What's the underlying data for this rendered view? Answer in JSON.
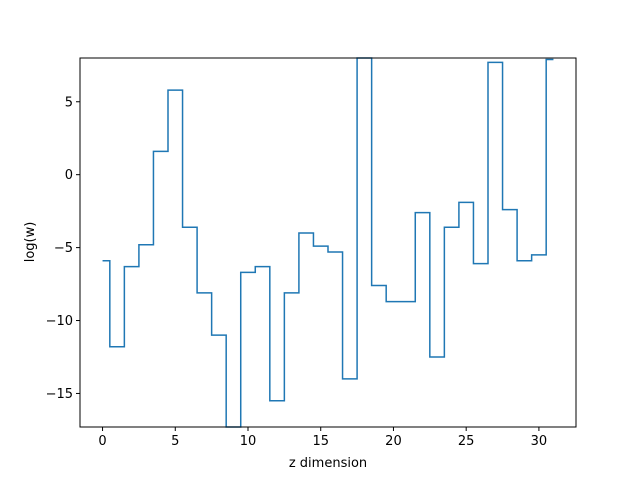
{
  "chart_data": {
    "type": "line",
    "drawstyle": "steps-mid",
    "title": "",
    "xlabel": "z dimension",
    "ylabel": "log(w)",
    "xlim": [
      -1.55,
      32.55
    ],
    "ylim": [
      -17.3,
      8.0
    ],
    "xticks": [
      0,
      5,
      10,
      15,
      20,
      25,
      30
    ],
    "xtick_labels": [
      "0",
      "5",
      "10",
      "15",
      "20",
      "25",
      "30"
    ],
    "yticks": [
      -15,
      -10,
      -5,
      0,
      5
    ],
    "ytick_labels": [
      "−15",
      "−10",
      "−5",
      "0",
      "5"
    ],
    "grid": false,
    "series": [
      {
        "color": "#1f77b4",
        "x": [
          0,
          1,
          2,
          3,
          4,
          5,
          6,
          7,
          8,
          9,
          10,
          11,
          12,
          13,
          14,
          15,
          16,
          17,
          18,
          19,
          20,
          21,
          22,
          23,
          24,
          25,
          26,
          27,
          28,
          29,
          30,
          31
        ],
        "y": [
          -5.9,
          -11.8,
          -6.3,
          -4.8,
          1.6,
          5.8,
          -3.6,
          -8.1,
          -11.0,
          -17.3,
          -6.7,
          -6.3,
          -15.5,
          -8.1,
          -4.0,
          -4.9,
          -5.3,
          -14.0,
          8.0,
          -7.6,
          -8.7,
          -8.7,
          -2.6,
          -12.5,
          -3.6,
          -1.9,
          -6.1,
          7.7,
          -2.4,
          -5.9,
          -5.5,
          7.9
        ]
      }
    ]
  }
}
